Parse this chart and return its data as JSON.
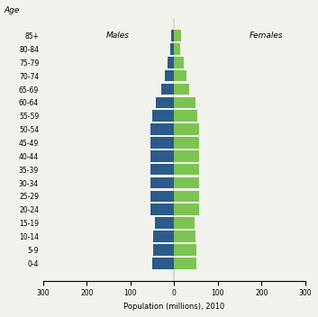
{
  "age_groups": [
    "0-4",
    "5-9",
    "10-14",
    "15-19",
    "20-24",
    "25-29",
    "30-34",
    "35-39",
    "40-44",
    "45-49",
    "50-54",
    "55-59",
    "60-64",
    "65-69",
    "70-74",
    "75-79",
    "80-84",
    "85+"
  ],
  "males": [
    50,
    48,
    48,
    45,
    55,
    55,
    55,
    55,
    55,
    55,
    55,
    50,
    42,
    30,
    22,
    15,
    9,
    6
  ],
  "females": [
    50,
    50,
    48,
    46,
    57,
    57,
    57,
    57,
    57,
    57,
    58,
    53,
    48,
    34,
    28,
    22,
    14,
    16
  ],
  "male_color": "#2B5B8A",
  "female_color": "#7DC352",
  "title_age": "Age",
  "label_males": "Males",
  "label_females": "Females",
  "xlabel": "Population (millions), 2010",
  "xlim": [
    -300,
    300
  ],
  "xticks": [
    -300,
    -200,
    -100,
    0,
    100,
    200,
    300
  ],
  "xticklabels": [
    "300",
    "200",
    "100",
    "0",
    "100",
    "200",
    "300"
  ],
  "background_color": "#f2f2ec",
  "bar_height": 0.85,
  "tick_fontsize": 5.5,
  "label_fontsize": 6.5,
  "axis_label_fontsize": 6.0
}
